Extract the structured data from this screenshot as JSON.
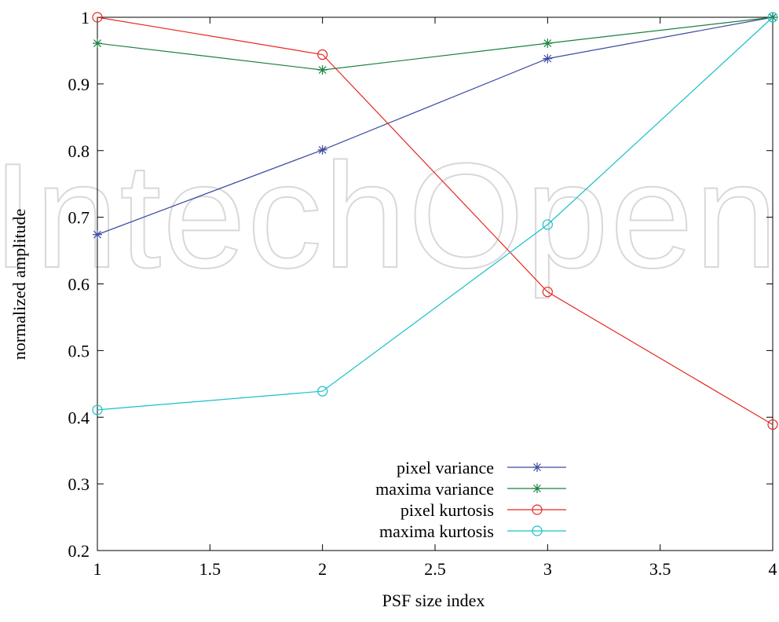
{
  "watermark": "IntechOpen",
  "chart_data": {
    "type": "line",
    "title": "",
    "xlabel": "PSF size index",
    "ylabel": "normalized amplitude",
    "xlim": [
      1,
      4
    ],
    "ylim": [
      0.2,
      1
    ],
    "x_ticks": [
      "1",
      "1.5",
      "2",
      "2.5",
      "3",
      "3.5",
      "4"
    ],
    "y_ticks": [
      "0.2",
      "0.3",
      "0.4",
      "0.5",
      "0.6",
      "0.7",
      "0.8",
      "0.9",
      "1"
    ],
    "grid": false,
    "legend_position": "bottom-center",
    "x": [
      1,
      2,
      3,
      4
    ],
    "series": [
      {
        "name": "pixel variance",
        "values": [
          0.674,
          0.801,
          0.938,
          1.0
        ],
        "color": "#3a4aa0",
        "marker": "star"
      },
      {
        "name": "maxima variance",
        "values": [
          0.961,
          0.921,
          0.961,
          1.0
        ],
        "color": "#1a8040",
        "marker": "star"
      },
      {
        "name": "pixel kurtosis",
        "values": [
          1.0,
          0.944,
          0.588,
          0.389
        ],
        "color": "#e8261e",
        "marker": "circle"
      },
      {
        "name": "maxima kurtosis",
        "values": [
          0.411,
          0.439,
          0.689,
          1.0
        ],
        "color": "#17c0c8",
        "marker": "circle"
      }
    ]
  }
}
